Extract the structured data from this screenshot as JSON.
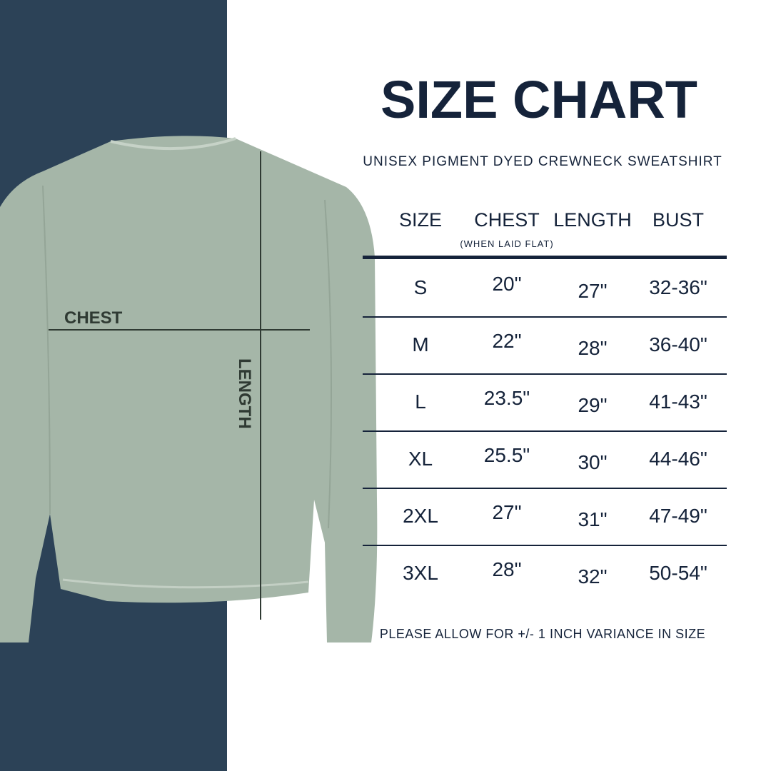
{
  "colors": {
    "navy_band": "#2c4257",
    "text": "#15233a",
    "sweatshirt": "#a5b6a8"
  },
  "title": "SIZE CHART",
  "subtitle": "UNISEX PIGMENT DYED CREWNECK SWEATSHIRT",
  "image_labels": {
    "chest": "CHEST",
    "length": "LENGTH"
  },
  "table": {
    "headers": [
      "SIZE",
      "CHEST",
      "LENGTH",
      "BUST"
    ],
    "chest_note": "(WHEN LAID FLAT)",
    "rows": [
      [
        "S",
        "20\"",
        "27\"",
        "32-36\""
      ],
      [
        "M",
        "22\"",
        "28\"",
        "36-40\""
      ],
      [
        "L",
        "23.5\"",
        "29\"",
        "41-43\""
      ],
      [
        "XL",
        "25.5\"",
        "30\"",
        "44-46\""
      ],
      [
        "2XL",
        "27\"",
        "31\"",
        "47-49\""
      ],
      [
        "3XL",
        "28\"",
        "32\"",
        "50-54\""
      ]
    ]
  },
  "note": "PLEASE ALLOW FOR +/- 1 INCH VARIANCE IN SIZE"
}
